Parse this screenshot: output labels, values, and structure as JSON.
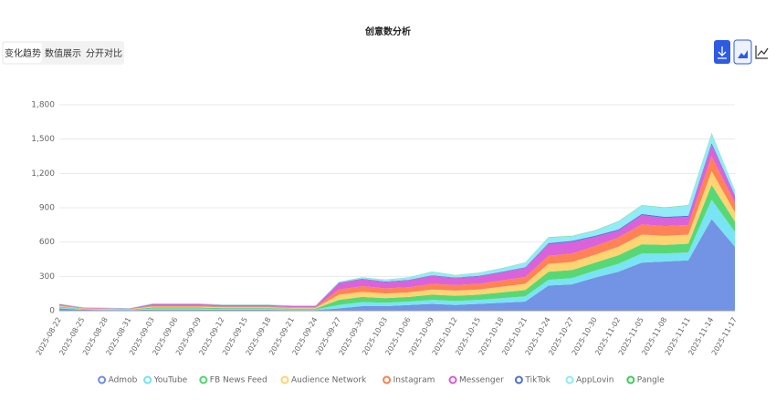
{
  "ui": {
    "tabs": [
      "变化趋势",
      "数值展示",
      "分开对比"
    ]
  },
  "chart_data": {
    "type": "stacked-area",
    "title": "创意数分析",
    "categories": [
      "2025-08-22",
      "2025-08-25",
      "2025-08-28",
      "2025-08-31",
      "2025-09-03",
      "2025-09-06",
      "2025-09-09",
      "2025-09-12",
      "2025-09-15",
      "2025-09-18",
      "2025-09-21",
      "2025-09-24",
      "2025-09-27",
      "2025-09-30",
      "2025-10-03",
      "2025-10-06",
      "2025-10-09",
      "2025-10-12",
      "2025-10-15",
      "2025-10-18",
      "2025-10-21",
      "2025-10-24",
      "2025-10-27",
      "2025-10-30",
      "2025-11-02",
      "2025-11-05",
      "2025-11-08",
      "2025-11-11",
      "2025-11-14",
      "2025-11-17"
    ],
    "series": [
      {
        "name": "Admob",
        "color": "#6b8de3",
        "values": [
          20,
          8,
          6,
          5,
          10,
          10,
          10,
          8,
          8,
          8,
          6,
          6,
          20,
          40,
          40,
          50,
          60,
          50,
          60,
          70,
          80,
          220,
          230,
          290,
          340,
          420,
          430,
          440,
          800,
          560
        ]
      },
      {
        "name": "YouTube",
        "color": "#72e3f2",
        "values": [
          8,
          4,
          4,
          3,
          8,
          8,
          8,
          7,
          7,
          7,
          6,
          6,
          30,
          35,
          30,
          30,
          35,
          35,
          35,
          40,
          45,
          50,
          55,
          60,
          70,
          80,
          70,
          70,
          170,
          130
        ]
      },
      {
        "name": "FB News Feed",
        "color": "#4ed66e",
        "values": [
          8,
          4,
          3,
          3,
          10,
          10,
          10,
          8,
          8,
          8,
          7,
          7,
          45,
          45,
          40,
          40,
          45,
          45,
          45,
          50,
          55,
          70,
          70,
          70,
          75,
          80,
          75,
          75,
          130,
          90
        ]
      },
      {
        "name": "Audience Network",
        "color": "#ffd36b",
        "values": [
          6,
          3,
          3,
          2,
          8,
          8,
          8,
          7,
          7,
          7,
          6,
          6,
          45,
          45,
          40,
          40,
          45,
          45,
          45,
          50,
          55,
          70,
          70,
          70,
          75,
          85,
          80,
          80,
          120,
          80
        ]
      },
      {
        "name": "Instagram",
        "color": "#ff7c4d",
        "values": [
          6,
          3,
          3,
          2,
          8,
          8,
          8,
          7,
          7,
          7,
          6,
          6,
          45,
          50,
          45,
          45,
          50,
          50,
          50,
          55,
          60,
          70,
          75,
          75,
          80,
          90,
          85,
          85,
          130,
          80
        ]
      },
      {
        "name": "Messenger",
        "color": "#d85ad8",
        "values": [
          8,
          4,
          3,
          3,
          13,
          13,
          13,
          11,
          11,
          11,
          9,
          9,
          55,
          60,
          55,
          60,
          70,
          60,
          65,
          70,
          80,
          100,
          100,
          80,
          60,
          80,
          70,
          70,
          100,
          60
        ]
      },
      {
        "name": "TikTok",
        "color": "#4a6fd8",
        "values": [
          2,
          1,
          1,
          1,
          2,
          2,
          2,
          2,
          2,
          2,
          2,
          2,
          5,
          5,
          5,
          5,
          5,
          5,
          5,
          5,
          5,
          10,
          10,
          10,
          10,
          10,
          10,
          10,
          15,
          10
        ]
      },
      {
        "name": "AppLovin",
        "color": "#8ceaf5",
        "values": [
          2,
          2,
          2,
          1,
          4,
          4,
          4,
          3,
          3,
          3,
          2,
          2,
          5,
          10,
          15,
          20,
          30,
          20,
          25,
          30,
          40,
          50,
          40,
          45,
          70,
          75,
          80,
          90,
          85,
          40
        ]
      },
      {
        "name": "Pangle",
        "color": "#3cc95a",
        "values": [
          1,
          1,
          1,
          1,
          1,
          1,
          1,
          1,
          1,
          1,
          1,
          1,
          2,
          2,
          2,
          2,
          2,
          2,
          2,
          2,
          2,
          3,
          3,
          3,
          3,
          3,
          3,
          3,
          4,
          3
        ]
      }
    ],
    "ylim": [
      0,
      1800
    ],
    "yticks": [
      0,
      300,
      600,
      900,
      {
        "value": 1200,
        "label": "1,200"
      },
      {
        "value": 1500,
        "label": "1,500"
      },
      {
        "value": 1800,
        "label": "1,800"
      }
    ],
    "grid": true,
    "legend": "bottom"
  }
}
